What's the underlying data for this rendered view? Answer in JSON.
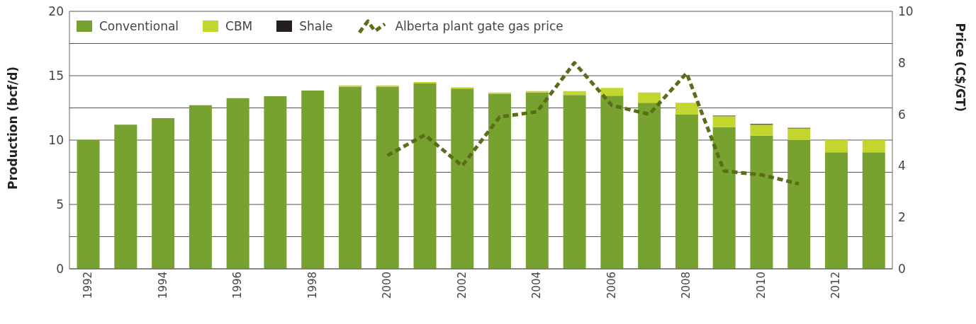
{
  "chart_data": {
    "type": "bar",
    "stacked": true,
    "categories": [
      "1992",
      null,
      "1994",
      null,
      "1996",
      null,
      "1998",
      null,
      "2000",
      null,
      "2002",
      null,
      "2004",
      null,
      "2006",
      null,
      "2008",
      null,
      "2010",
      null,
      "2012",
      null
    ],
    "series": [
      {
        "name": "Conventional",
        "color": "#78a22f",
        "values": [
          10.0,
          11.2,
          11.7,
          12.7,
          13.25,
          13.4,
          13.85,
          14.15,
          14.15,
          14.4,
          14.0,
          13.6,
          13.7,
          13.5,
          13.45,
          12.9,
          12.0,
          11.0,
          10.35,
          10.0,
          9.05,
          9.05
        ]
      },
      {
        "name": "CBM",
        "color": "#c2d62e",
        "values": [
          0,
          0,
          0,
          0,
          0,
          0,
          0,
          0.1,
          0.1,
          0.1,
          0.1,
          0.1,
          0.1,
          0.3,
          0.6,
          0.8,
          0.9,
          0.85,
          0.85,
          0.9,
          0.95,
          0.95
        ]
      },
      {
        "name": "Shale",
        "color": "#231f20",
        "values": [
          0,
          0,
          0,
          0,
          0,
          0,
          0,
          0,
          0,
          0,
          0,
          0,
          0,
          0,
          0,
          0,
          0,
          0.05,
          0.05,
          0.05,
          0,
          0
        ]
      },
      {
        "name": "Alberta plant gate gas price",
        "type": "line",
        "axis": "y2",
        "color": "#5a6e1a",
        "line_style": "dashed",
        "marker": "none",
        "values": [
          null,
          null,
          null,
          null,
          null,
          null,
          null,
          null,
          4.4,
          5.2,
          4.0,
          5.9,
          6.1,
          8.0,
          6.35,
          6.0,
          7.6,
          3.8,
          3.65,
          3.3,
          null,
          null
        ]
      }
    ],
    "ylabel": "Production (bcf/d)",
    "y2label": "Price (C$/GT)",
    "ylim": [
      0,
      20
    ],
    "yticks": [
      0,
      {
        "value": 2.5,
        "label": null
      },
      5,
      {
        "value": 7.5,
        "label": null
      },
      10,
      {
        "value": 12.5,
        "label": null
      },
      15,
      {
        "value": 17.5,
        "label": null
      },
      20
    ],
    "y2lim": [
      0,
      10
    ],
    "y2ticks": [
      0,
      2,
      4,
      6,
      8,
      10
    ],
    "grid": "y",
    "legend": "top"
  }
}
